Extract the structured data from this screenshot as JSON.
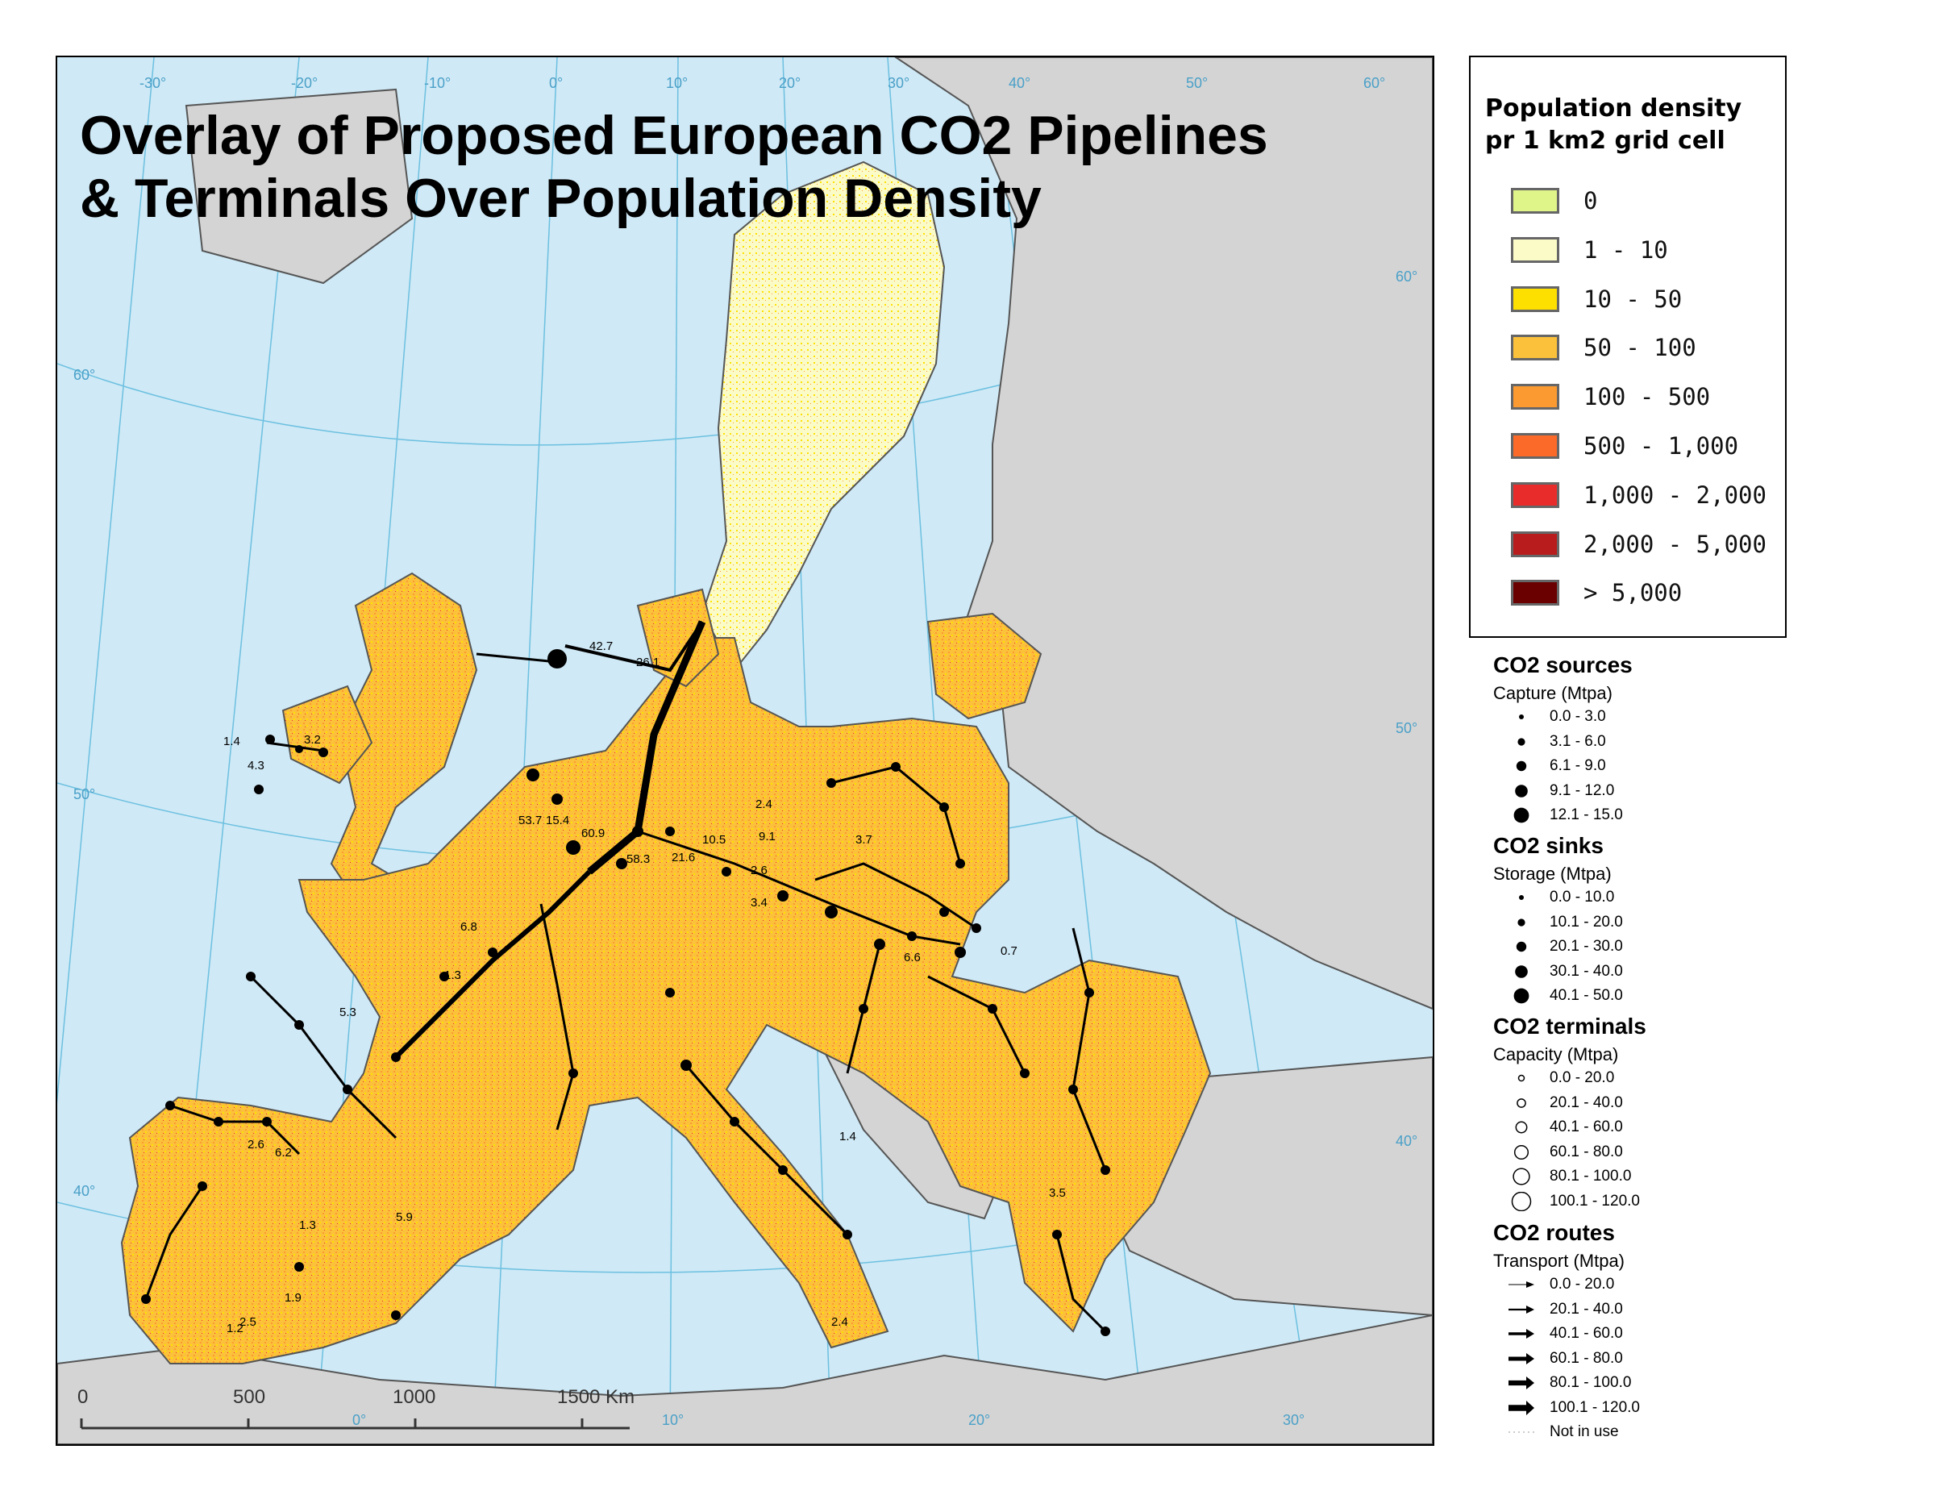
{
  "title_line1": "Overlay of Proposed European CO2 Pipelines",
  "title_line2": "& Terminals Over Population Density",
  "graticule": {
    "top": [
      "-30°",
      "-20°",
      "-10°",
      "0°",
      "10°",
      "20°",
      "30°",
      "40°",
      "50°",
      "60°"
    ],
    "lat_left": [
      "60°",
      "50°",
      "40°"
    ],
    "lat_right": [
      "60°",
      "50°",
      "40°"
    ],
    "bottom": [
      "0°",
      "10°",
      "20°",
      "30°"
    ]
  },
  "scale_bar": {
    "labels": [
      "0",
      "500",
      "1000",
      "1500 Km"
    ]
  },
  "population_legend": {
    "title": "Population density pr 1 km2 grid cell",
    "classes": [
      {
        "label": "0",
        "color": "#dff58a"
      },
      {
        "label": "1 - 10",
        "color": "#fbfbc8"
      },
      {
        "label": "10 - 50",
        "color": "#fde000"
      },
      {
        "label": "50 - 100",
        "color": "#fcc13a"
      },
      {
        "label": "100 - 500",
        "color": "#fc9a32"
      },
      {
        "label": "500 - 1,000",
        "color": "#fc6a2a"
      },
      {
        "label": "1,000 - 2,000",
        "color": "#e82c2c"
      },
      {
        "label": "2,000 - 5,000",
        "color": "#b81c1c"
      },
      {
        "label": "> 5,000",
        "color": "#6a0000"
      }
    ]
  },
  "co2_sources": {
    "heading": "CO2 sources",
    "unit": "Capture (Mtpa)",
    "items": [
      "0.0 - 3.0",
      "3.1 - 6.0",
      "6.1 - 9.0",
      "9.1 - 12.0",
      "12.1 - 15.0"
    ]
  },
  "co2_sinks": {
    "heading": "CO2 sinks",
    "unit": "Storage (Mtpa)",
    "items": [
      "0.0 - 10.0",
      "10.1 - 20.0",
      "20.1 - 30.0",
      "30.1 - 40.0",
      "40.1 - 50.0"
    ]
  },
  "co2_terminals": {
    "heading": "CO2 terminals",
    "unit": "Capacity (Mtpa)",
    "items": [
      "0.0 - 20.0",
      "20.1 - 40.0",
      "40.1 - 60.0",
      "60.1 - 80.0",
      "80.1 - 100.0",
      "100.1 - 120.0"
    ]
  },
  "co2_routes": {
    "heading": "CO2 routes",
    "unit": "Transport (Mtpa)",
    "items": [
      "0.0 - 20.0",
      "20.1 - 40.0",
      "40.1 - 60.0",
      "60.1 - 80.0",
      "80.1 - 100.0",
      "100.1 - 120.0",
      "Not in use"
    ]
  },
  "route_labels": [
    "42.7",
    "26.1",
    "4.3",
    "3.2",
    "1.4",
    "53.7",
    "15.4",
    "60.9",
    "58.3",
    "21.6",
    "2.4",
    "9.1",
    "3.7",
    "2.6",
    "3.4",
    "6.8",
    "1.3",
    "5.3",
    "6.6",
    "10.5",
    "2.6",
    "6.2",
    "1.3",
    "5.9",
    "1.9",
    "2.5",
    "1.2",
    "2.4",
    "1.4",
    "0.7",
    "3.5"
  ],
  "colors": {
    "sea": "#cfe9f6",
    "non_eu_land": "#d4d4d4",
    "route": "#000000",
    "graticule": "#6cc0e0"
  }
}
